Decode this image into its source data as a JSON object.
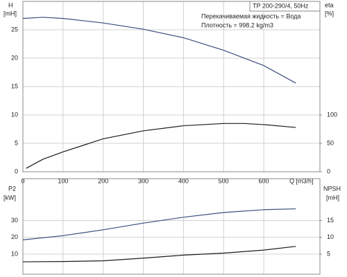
{
  "chart_data": [
    {
      "type": "line",
      "title": "TP 200-290/4, 50Hz",
      "annotations": [
        "Перекачиваемая жидкость = Вода",
        "Плотность = 998.2 kg/m3"
      ],
      "y_label": [
        "H",
        "[mH]"
      ],
      "y2_label": [
        "eta",
        "[%]"
      ],
      "x_label": "Q [m3/h]",
      "xlim": [
        0,
        740
      ],
      "xticks": [
        0,
        100,
        200,
        300,
        400,
        500,
        600
      ],
      "ylim": [
        0,
        30
      ],
      "yticks": [
        0,
        5,
        10,
        15,
        20,
        25
      ],
      "y2lim": [
        0,
        300
      ],
      "y2ticks": [
        0,
        50,
        100
      ],
      "grid": true,
      "show_xtick_labels": true,
      "series": [
        {
          "name": "H",
          "color": "#3b4b7e",
          "x": [
            0,
            50,
            100,
            200,
            300,
            400,
            500,
            600,
            680
          ],
          "values": [
            27.0,
            27.2,
            27.0,
            26.2,
            25.1,
            23.6,
            21.4,
            18.7,
            15.6
          ]
        },
        {
          "name": "eta",
          "color": "#1a1a1a",
          "axis": "y2",
          "x": [
            8,
            50,
            100,
            200,
            300,
            400,
            500,
            550,
            600,
            680
          ],
          "values": [
            6,
            22,
            35,
            58,
            72,
            81,
            85,
            85,
            83,
            78
          ]
        }
      ]
    },
    {
      "type": "line",
      "y_label": [
        "P2",
        "[kW]"
      ],
      "y2_label": [
        "NPSH",
        "[mH]"
      ],
      "xlim": [
        0,
        740
      ],
      "xticks": [
        0,
        100,
        200,
        300,
        400,
        500,
        600
      ],
      "ylim": [
        -2,
        55
      ],
      "yticks": [
        10,
        20,
        30
      ],
      "y2lim": [
        -1,
        27.5
      ],
      "y2ticks": [
        5,
        10,
        15
      ],
      "grid": true,
      "show_xtick_labels": false,
      "series": [
        {
          "name": "P2",
          "color": "#3b4b7e",
          "x": [
            0,
            100,
            200,
            300,
            400,
            500,
            600,
            680
          ],
          "values": [
            18.5,
            21,
            24.5,
            28.5,
            32,
            34.8,
            36.5,
            37
          ]
        },
        {
          "name": "NPSH",
          "color": "#1a1a1a",
          "axis": "y2",
          "x": [
            0,
            100,
            200,
            300,
            400,
            500,
            600,
            680
          ],
          "values": [
            2.7,
            2.8,
            3.0,
            3.8,
            4.7,
            5.3,
            6.2,
            7.3
          ]
        }
      ]
    }
  ]
}
